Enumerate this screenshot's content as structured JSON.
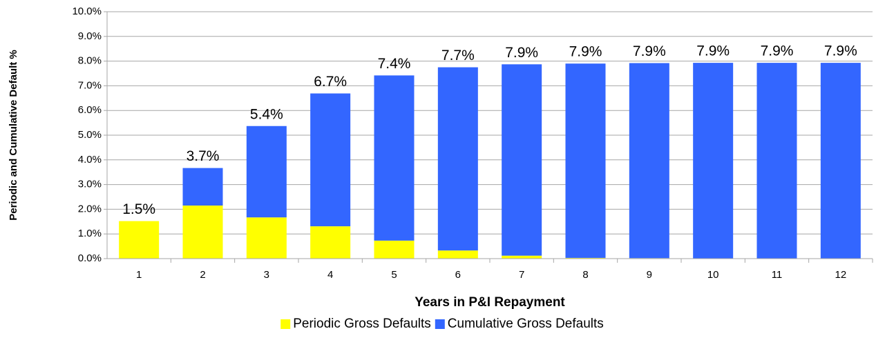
{
  "chart_data": {
    "type": "stacked_bar",
    "xlabel": "Years in P&I Repayment",
    "ylabel": "Periodic and Cumulative Default %",
    "categories": [
      "1",
      "2",
      "3",
      "4",
      "5",
      "6",
      "7",
      "8",
      "9",
      "10",
      "11",
      "12"
    ],
    "series": [
      {
        "name": "Periodic Gross Defaults",
        "color": "#ffff00",
        "values": [
          1.52,
          2.15,
          1.67,
          1.31,
          0.73,
          0.33,
          0.12,
          0.03,
          0.02,
          0.01,
          0,
          0
        ]
      },
      {
        "name": "Cumulative Gross Defaults",
        "color": "#3366ff",
        "values": [
          0,
          1.52,
          3.7,
          5.38,
          6.69,
          7.42,
          7.75,
          7.87,
          7.9,
          7.92,
          7.93,
          7.93
        ]
      }
    ],
    "data_labels": [
      "1.5%",
      "3.7%",
      "5.4%",
      "6.7%",
      "7.4%",
      "7.7%",
      "7.9%",
      "7.9%",
      "7.9%",
      "7.9%",
      "7.9%",
      "7.9%"
    ],
    "ylim": [
      0,
      10
    ],
    "yticks": [
      {
        "value": 0,
        "label": "0.0%"
      },
      {
        "value": 1,
        "label": "1.0%"
      },
      {
        "value": 2,
        "label": "2.0%"
      },
      {
        "value": 3,
        "label": "3.0%"
      },
      {
        "value": 4,
        "label": "4.0%"
      },
      {
        "value": 5,
        "label": "5.0%"
      },
      {
        "value": 6,
        "label": "6.0%"
      },
      {
        "value": 7,
        "label": "7.0%"
      },
      {
        "value": 8,
        "label": "8.0%"
      },
      {
        "value": 9,
        "label": "9.0%"
      },
      {
        "value": 10,
        "label": "10.0%"
      }
    ],
    "grid": true,
    "legend": "bottom"
  }
}
